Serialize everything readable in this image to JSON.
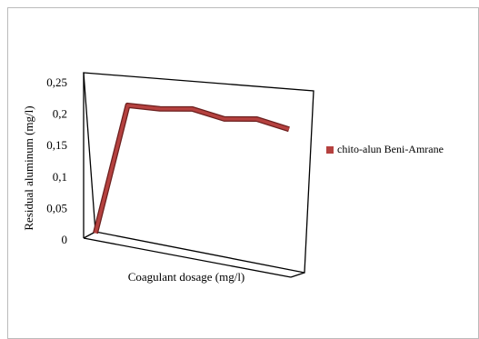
{
  "chart_data": {
    "type": "line",
    "y_label": "Residual aluminum (mg/l)",
    "x_label": "Coagulant dosage (mg/l)",
    "categories": [
      null,
      null,
      null,
      null,
      null,
      null,
      null
    ],
    "series": [
      {
        "name": "chito-alun Beni-Amrane",
        "color": "#b5413f",
        "values": [
          0.005,
          0.21,
          0.21,
          0.215,
          0.205,
          0.21,
          0.2
        ]
      }
    ],
    "ylim": [
      0,
      0.25
    ],
    "yticks": [
      0,
      {
        "value": 0.05,
        "label": "0,05"
      },
      {
        "value": 0.1,
        "label": "0,1"
      },
      {
        "value": 0.15,
        "label": "0,15"
      },
      {
        "value": 0.2,
        "label": "0,2"
      },
      {
        "value": 0.25,
        "label": "0,25"
      }
    ],
    "legend": "right"
  }
}
